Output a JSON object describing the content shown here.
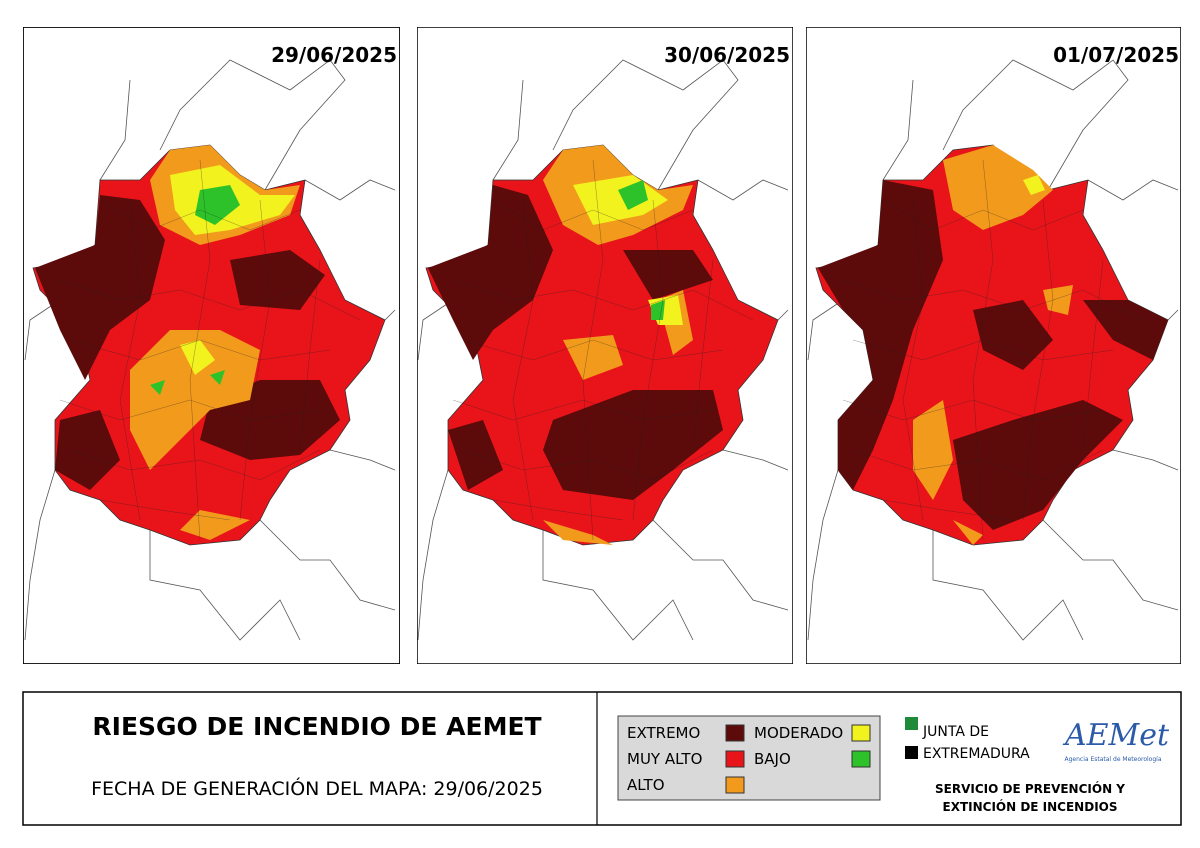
{
  "maps": [
    {
      "date": "29/06/2025"
    },
    {
      "date": "30/06/2025"
    },
    {
      "date": "01/07/2025"
    }
  ],
  "footer": {
    "title": "RIESGO DE INCENDIO DE AEMET",
    "generation": "FECHA DE GENERACIÓN DEL MAPA: 29/06/2025"
  },
  "legend": [
    {
      "label": "EXTREMO",
      "color": "#5c0a0a"
    },
    {
      "label": "MUY ALTO",
      "color": "#e8141a"
    },
    {
      "label": "ALTO",
      "color": "#f29a1c"
    },
    {
      "label": "MODERADO",
      "color": "#f2f21e"
    },
    {
      "label": "BAJO",
      "color": "#2ec22a"
    }
  ],
  "logos": {
    "junta_line1": "JUNTA DE",
    "junta_line2": "EXTREMADURA",
    "aemet": "AEMet",
    "aemet_sub": "Agencia Estatal de Meteorología",
    "service_line1": "SERVICIO DE PREVENCIÓN Y",
    "service_line2": "EXTINCIÓN DE INCENDIOS"
  }
}
